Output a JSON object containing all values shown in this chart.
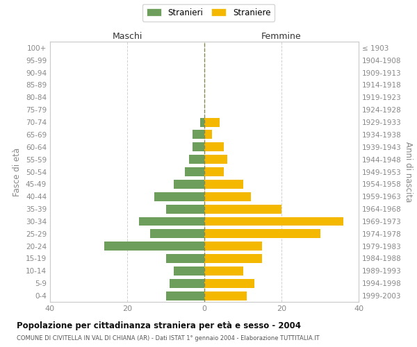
{
  "age_groups": [
    "0-4",
    "5-9",
    "10-14",
    "15-19",
    "20-24",
    "25-29",
    "30-34",
    "35-39",
    "40-44",
    "45-49",
    "50-54",
    "55-59",
    "60-64",
    "65-69",
    "70-74",
    "75-79",
    "80-84",
    "85-89",
    "90-94",
    "95-99",
    "100+"
  ],
  "birth_years": [
    "1999-2003",
    "1994-1998",
    "1989-1993",
    "1984-1988",
    "1979-1983",
    "1974-1978",
    "1969-1973",
    "1964-1968",
    "1959-1963",
    "1954-1958",
    "1949-1953",
    "1944-1948",
    "1939-1943",
    "1934-1938",
    "1929-1933",
    "1924-1928",
    "1919-1923",
    "1914-1918",
    "1909-1913",
    "1904-1908",
    "≤ 1903"
  ],
  "males": [
    10,
    9,
    8,
    10,
    26,
    14,
    17,
    10,
    13,
    8,
    5,
    4,
    3,
    3,
    1,
    0,
    0,
    0,
    0,
    0,
    0
  ],
  "females": [
    11,
    13,
    10,
    15,
    15,
    30,
    36,
    20,
    12,
    10,
    5,
    6,
    5,
    2,
    4,
    0,
    0,
    0,
    0,
    0,
    0
  ],
  "male_color": "#6d9e5c",
  "female_color": "#f5b800",
  "background_color": "#ffffff",
  "grid_color": "#cccccc",
  "title": "Popolazione per cittadinanza straniera per età e sesso - 2004",
  "subtitle": "COMUNE DI CIVITELLA IN VAL DI CHIANA (AR) - Dati ISTAT 1° gennaio 2004 - Elaborazione TUTTITALIA.IT",
  "xlabel_left": "Maschi",
  "xlabel_right": "Femmine",
  "ylabel_left": "Fasce di età",
  "ylabel_right": "Anni di nascita",
  "legend_male": "Stranieri",
  "legend_female": "Straniere",
  "xlim": 40,
  "tick_color": "#888888",
  "spine_color": "#cccccc",
  "dashed_line_color": "#888855"
}
